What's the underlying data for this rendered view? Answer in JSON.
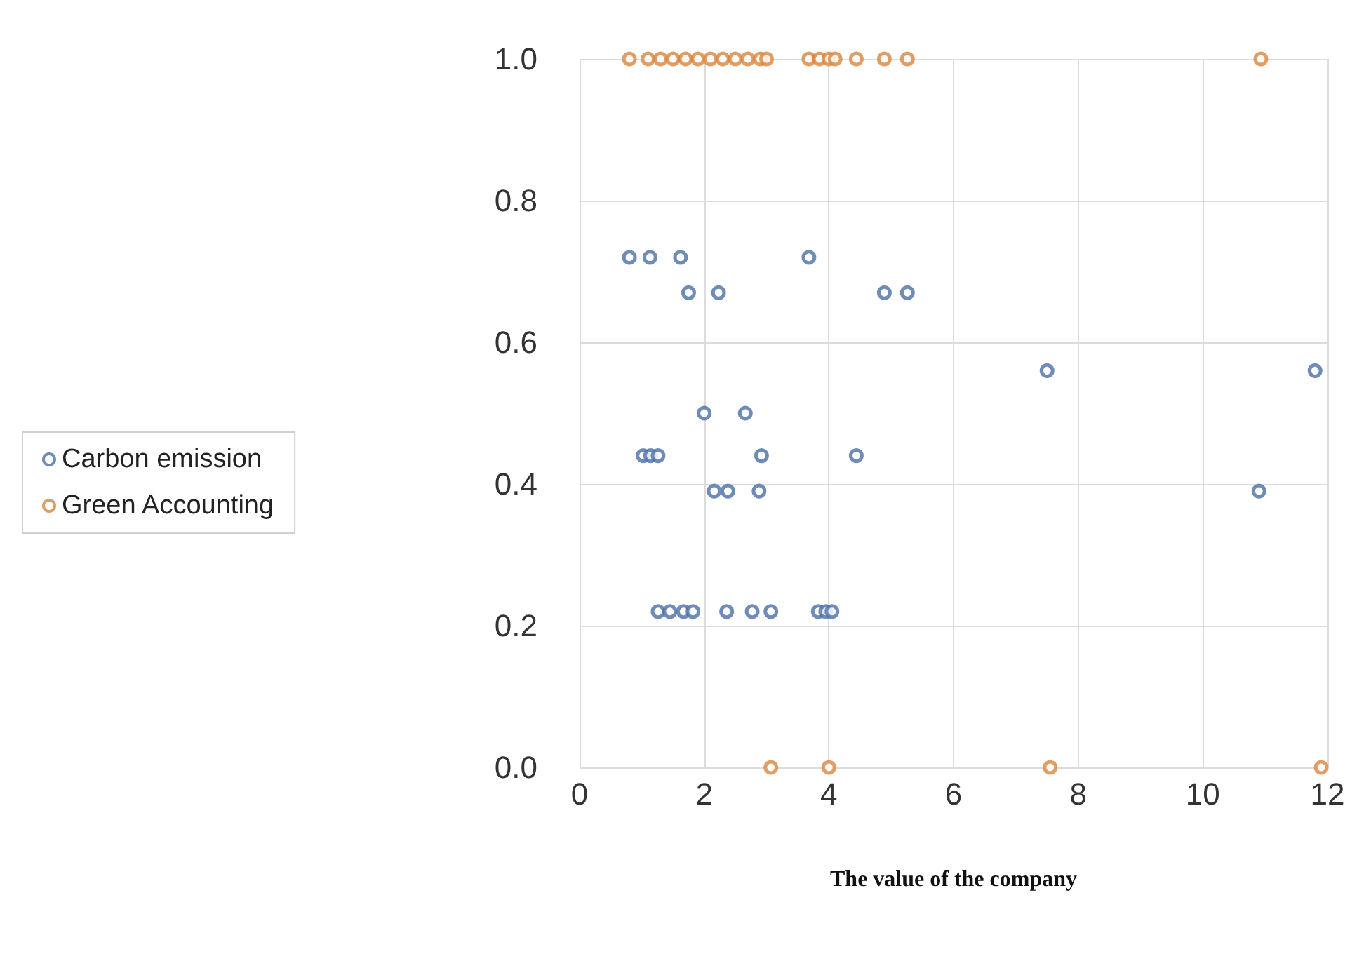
{
  "chart_data": {
    "type": "scatter",
    "xlabel": "The value of the company",
    "xlim": [
      0,
      12
    ],
    "xticks": [
      0,
      2,
      4,
      6,
      8,
      10,
      12
    ],
    "ylim": [
      0,
      1
    ],
    "yticks": [
      {
        "value": 0,
        "label": "0.0"
      },
      {
        "value": 0.2,
        "label": "0.2"
      },
      {
        "value": 0.4,
        "label": "0.4"
      },
      {
        "value": 0.6,
        "label": "0.6"
      },
      {
        "value": 0.8,
        "label": "0.8"
      },
      {
        "value": 1,
        "label": "1.0"
      }
    ],
    "grid": true,
    "legend": "left",
    "marker": "circle",
    "series": [
      {
        "name": "Carbon emission",
        "color": "#4a6fa5",
        "x": [
          0.8,
          1.13,
          1.62,
          3.68,
          1.75,
          2.23,
          4.89,
          5.26,
          7.5,
          11.8,
          2.0,
          2.66,
          1.02,
          1.14,
          1.26,
          2.92,
          4.44,
          2.16,
          2.38,
          2.88,
          10.9,
          1.26,
          1.45,
          1.67,
          1.82,
          2.36,
          2.77,
          3.07,
          3.83,
          3.95,
          4.05
        ],
        "values": [
          0.72,
          0.72,
          0.72,
          0.72,
          0.67,
          0.67,
          0.67,
          0.67,
          0.56,
          0.56,
          0.5,
          0.5,
          0.44,
          0.44,
          0.44,
          0.44,
          0.44,
          0.39,
          0.39,
          0.39,
          0.39,
          0.22,
          0.22,
          0.22,
          0.22,
          0.22,
          0.22,
          0.22,
          0.22,
          0.22,
          0.22
        ]
      },
      {
        "name": "Green Accounting",
        "color": "#d9843b",
        "x": [
          0.8,
          1.1,
          1.3,
          1.5,
          1.7,
          1.9,
          2.1,
          2.3,
          2.5,
          2.7,
          2.9,
          3.0,
          3.68,
          3.85,
          4.0,
          4.1,
          4.44,
          4.89,
          5.26,
          10.93,
          3.07,
          4.0,
          7.55,
          11.9
        ],
        "values": [
          1,
          1,
          1,
          1,
          1,
          1,
          1,
          1,
          1,
          1,
          1,
          1,
          1,
          1,
          1,
          1,
          1,
          1,
          1,
          1,
          0,
          0,
          0,
          0
        ]
      }
    ]
  }
}
